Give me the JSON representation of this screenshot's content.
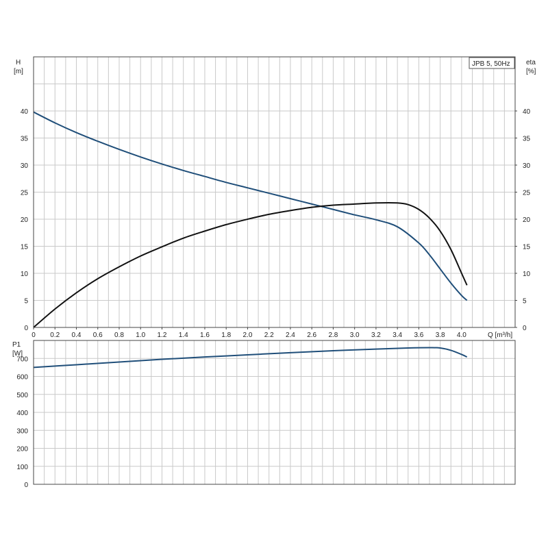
{
  "chart_data": [
    {
      "type": "line",
      "title": "",
      "legend_text": "JPB 5, 50Hz",
      "legend_position": "top-right",
      "ylabel_left": [
        "H",
        "[m]"
      ],
      "ylabel_right": [
        "eta",
        "[%]"
      ],
      "xlabel": "Q [m³/h]",
      "xlim": [
        0,
        4.5
      ],
      "ylim": [
        0,
        50
      ],
      "grid": true,
      "x_ticks": [
        "0",
        "0.2",
        "0.4",
        "0.6",
        "0.8",
        "1.0",
        "1.2",
        "1.4",
        "1.6",
        "1.8",
        "2.0",
        "2.2",
        "2.4",
        "2.6",
        "2.8",
        "3.0",
        "3.2",
        "3.4",
        "3.6",
        "3.8",
        "4.0"
      ],
      "y_ticks_left": [
        "0",
        "5",
        "10",
        "15",
        "20",
        "25",
        "30",
        "35",
        "40"
      ],
      "y_ticks_right": [
        "0",
        "5",
        "10",
        "15",
        "20",
        "25",
        "30",
        "35",
        "40"
      ],
      "series": [
        {
          "color": "#1f4e79",
          "x": [
            0,
            0.2,
            0.4,
            0.6,
            0.8,
            1.0,
            1.2,
            1.4,
            1.6,
            1.8,
            2.0,
            2.2,
            2.4,
            2.6,
            2.8,
            3.0,
            3.2,
            3.4,
            3.6,
            3.7,
            3.8,
            3.9,
            4.0,
            4.05
          ],
          "y": [
            39.8,
            37.8,
            36.0,
            34.4,
            32.9,
            31.5,
            30.2,
            29.0,
            27.9,
            26.8,
            25.8,
            24.8,
            23.8,
            22.8,
            21.8,
            20.8,
            19.9,
            18.6,
            15.6,
            13.4,
            10.8,
            8.2,
            5.9,
            5.0
          ]
        },
        {
          "color": "#111111",
          "x": [
            0,
            0.2,
            0.4,
            0.6,
            0.8,
            1.0,
            1.2,
            1.4,
            1.6,
            1.8,
            2.0,
            2.2,
            2.4,
            2.6,
            2.8,
            3.0,
            3.2,
            3.4,
            3.5,
            3.6,
            3.7,
            3.8,
            3.9,
            4.0,
            4.05
          ],
          "y": [
            0,
            3.4,
            6.4,
            9.0,
            11.2,
            13.2,
            14.9,
            16.5,
            17.8,
            19.0,
            20.0,
            20.9,
            21.6,
            22.2,
            22.6,
            22.8,
            23.0,
            23.0,
            22.7,
            21.8,
            20.2,
            17.8,
            14.4,
            10.0,
            7.8
          ]
        }
      ]
    },
    {
      "type": "line",
      "title": "",
      "ylabel_left": [
        "P1",
        "[W]"
      ],
      "xlim": [
        0,
        4.5
      ],
      "ylim": [
        0,
        800
      ],
      "grid": true,
      "y_ticks_left": [
        "0",
        "100",
        "200",
        "300",
        "400",
        "500",
        "600",
        "700"
      ],
      "series": [
        {
          "color": "#1f4e79",
          "x": [
            0,
            0.4,
            0.8,
            1.2,
            1.6,
            2.0,
            2.4,
            2.8,
            3.2,
            3.5,
            3.7,
            3.8,
            3.9,
            4.0,
            4.05
          ],
          "y": [
            650,
            665,
            680,
            695,
            708,
            720,
            732,
            743,
            752,
            758,
            760,
            758,
            745,
            722,
            708
          ]
        }
      ]
    }
  ]
}
